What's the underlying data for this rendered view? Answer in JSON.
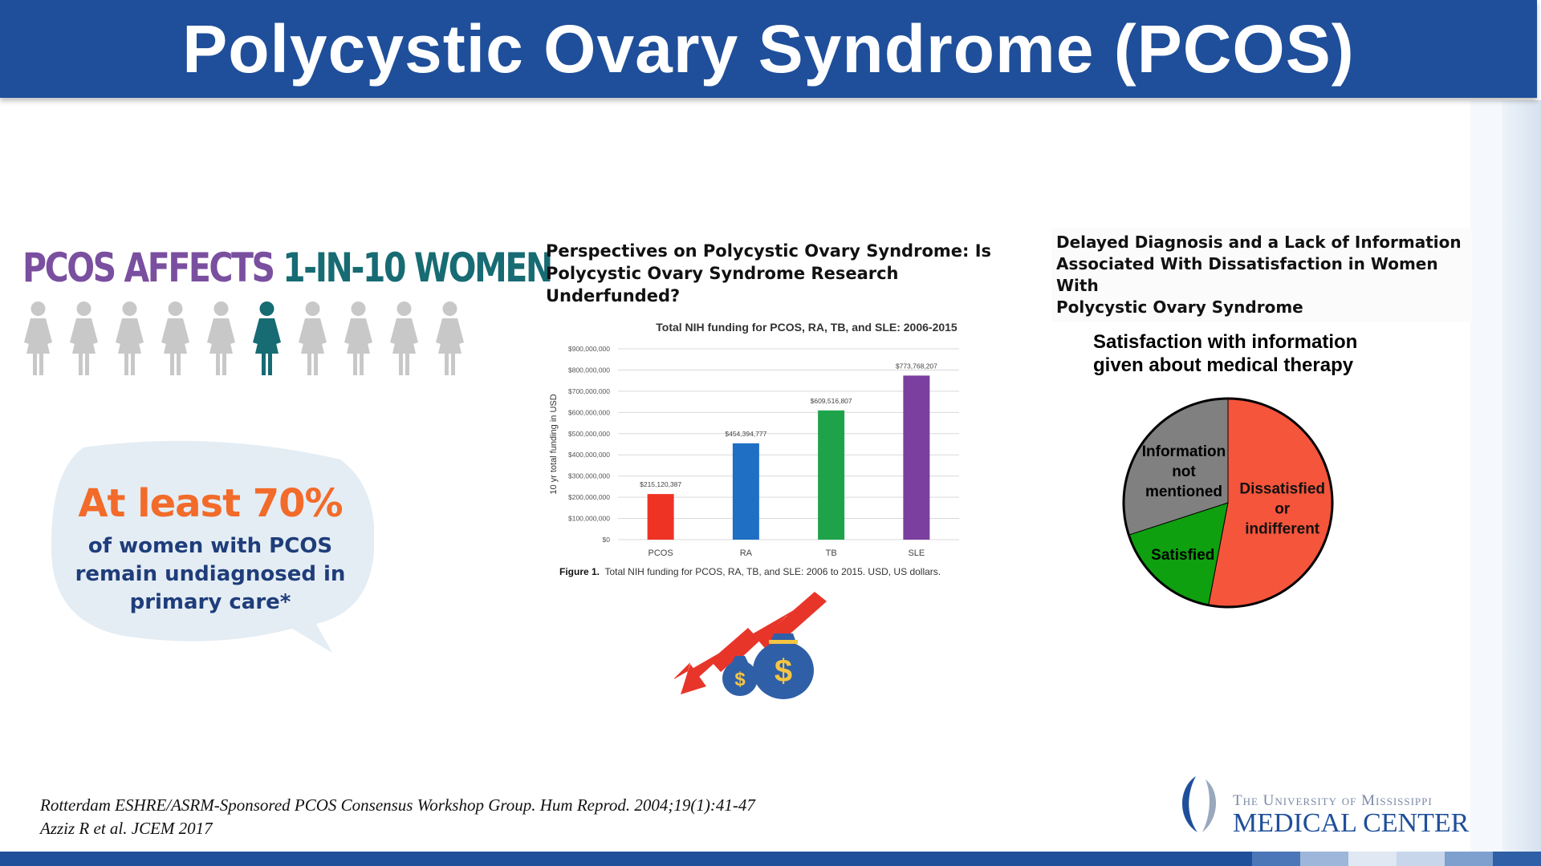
{
  "header": {
    "title": "Polycystic Ovary Syndrome (PCOS)"
  },
  "infographic": {
    "affects_part1": "PCOS AFFECTS",
    "affects_part2": "1-IN-10 WOMEN",
    "women_total": 10,
    "women_highlighted_index": 5,
    "colors": {
      "gray": "#c8c8c8",
      "teal": "#176b73",
      "purple": "#7a4f9f"
    }
  },
  "bubble": {
    "headline": "At least 70%",
    "line1": "of women with PCOS",
    "line2": "remain undiagnosed in",
    "line3": "primary care*"
  },
  "funding_article": {
    "title_line1": "Perspectives on Polycystic Ovary Syndrome: Is",
    "title_line2": "Polycystic Ovary Syndrome Research Underfunded?",
    "figure_label": "Figure 1.",
    "figure_caption": "Total NIH funding for PCOS, RA, TB, and SLE: 2006 to 2015. USD, US dollars."
  },
  "chart_data": {
    "type": "bar",
    "title": "Total NIH funding for PCOS, RA, TB, and SLE: 2006-2015",
    "ylabel": "10 yr total funding in USD",
    "xlabel": "",
    "categories": [
      "PCOS",
      "RA",
      "TB",
      "SLE"
    ],
    "values": [
      215120387,
      454394777,
      609516807,
      773768207
    ],
    "value_labels": [
      "$215,120,387",
      "$454,394,777",
      "$609,516,807",
      "$773,768,207"
    ],
    "colors": [
      "#ee3324",
      "#1f6fc5",
      "#1fa34a",
      "#7b3fa0"
    ],
    "ylim": [
      0,
      900000000
    ],
    "yticks": [
      "$0",
      "$100,000,000",
      "$200,000,000",
      "$300,000,000",
      "$400,000,000",
      "$500,000,000",
      "$600,000,000",
      "$700,000,000",
      "$800,000,000",
      "$900,000,000"
    ],
    "grid": true
  },
  "satisfaction_article": {
    "title_line1": "Delayed Diagnosis and a Lack of Information",
    "title_line2": "Associated With Dissatisfaction in Women With",
    "title_line3": "Polycystic Ovary Syndrome",
    "pie_title_line1": "Satisfaction with information",
    "pie_title_line2": "given about medical therapy"
  },
  "pie_data": {
    "type": "pie",
    "slices": [
      {
        "label_lines": [
          "Dissatisfied",
          "or",
          "indifferent"
        ],
        "value": 53,
        "color": "#f4553b"
      },
      {
        "label_lines": [
          "Satisfied"
        ],
        "value": 17,
        "color": "#0fa00f"
      },
      {
        "label_lines": [
          "Information",
          "not",
          "mentioned"
        ],
        "value": 30,
        "color": "#808080"
      }
    ]
  },
  "references": {
    "ref1": "Rotterdam ESHRE/ASRM-Sponsored PCOS Consensus Workshop Group. Hum Reprod. 2004;19(1):41-47",
    "ref2": "Azziz R et al. JCEM 2017"
  },
  "logo": {
    "line1": "The University of Mississippi",
    "line2": "MEDICAL CENTER"
  },
  "bottom_blocks": [
    "#4b77b8",
    "#9db6da",
    "#dfe8f3",
    "#c7d6ea",
    "#7ea0cf",
    "#2f5fa7"
  ]
}
